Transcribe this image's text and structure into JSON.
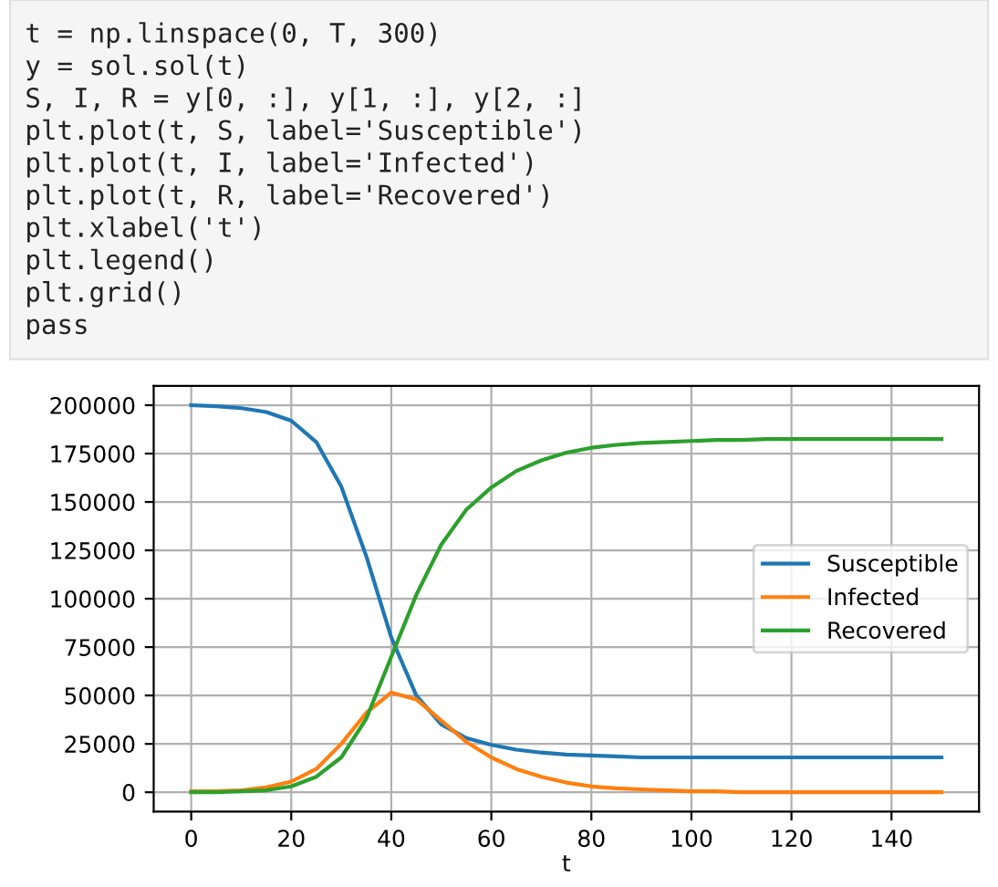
{
  "chart_data": {
    "type": "line",
    "xlabel": "t",
    "x": [
      0,
      5,
      10,
      15,
      20,
      25,
      30,
      35,
      40,
      45,
      50,
      55,
      60,
      65,
      70,
      75,
      80,
      85,
      90,
      95,
      100,
      105,
      110,
      115,
      120,
      125,
      130,
      135,
      140,
      145,
      150
    ],
    "series": [
      {
        "name": "Susceptible",
        "color": "#1f77b4",
        "values": [
          200000,
          199500,
          198500,
          196500,
          192000,
          181000,
          158000,
          122000,
          80000,
          50000,
          35000,
          28000,
          24500,
          22000,
          20500,
          19500,
          19000,
          18500,
          18000,
          18000,
          18000,
          18000,
          18000,
          18000,
          18000,
          18000,
          18000,
          18000,
          18000,
          18000,
          18000
        ]
      },
      {
        "name": "Infected",
        "color": "#ff7f0e",
        "values": [
          500,
          500,
          1000,
          2500,
          5500,
          12000,
          25000,
          41000,
          51500,
          48000,
          37000,
          26000,
          18000,
          12000,
          8000,
          5000,
          3000,
          2000,
          1500,
          1000,
          500,
          500,
          0,
          0,
          0,
          0,
          0,
          0,
          0,
          0,
          0
        ]
      },
      {
        "name": "Recovered",
        "color": "#2ca02c",
        "values": [
          0,
          0,
          500,
          1000,
          3000,
          8000,
          18000,
          38000,
          70000,
          102000,
          128000,
          146000,
          157500,
          166000,
          171500,
          175500,
          178000,
          179500,
          180500,
          181000,
          181500,
          182000,
          182000,
          182500,
          182500,
          182500,
          182500,
          182500,
          182500,
          182500,
          182500
        ]
      }
    ],
    "xlim": [
      -7.5,
      157.5
    ],
    "xticks": [
      0,
      20,
      40,
      60,
      80,
      100,
      120,
      140
    ],
    "ylim": [
      -10000,
      210000
    ],
    "yticks": [
      0,
      25000,
      50000,
      75000,
      100000,
      125000,
      150000,
      175000,
      200000
    ],
    "grid": true,
    "legend": "right",
    "annotations": [
      "t = np.linspace(0, T, 300)",
      "y = sol.sol(t)",
      "S, I, R = y[0, :], y[1, :], y[2, :]",
      "plt.plot(t, S, label='Susceptible')",
      "plt.plot(t, I, label='Infected')",
      "plt.plot(t, R, label='Recovered')",
      "plt.xlabel('t')",
      "plt.legend()",
      "plt.grid()",
      "pass"
    ]
  }
}
